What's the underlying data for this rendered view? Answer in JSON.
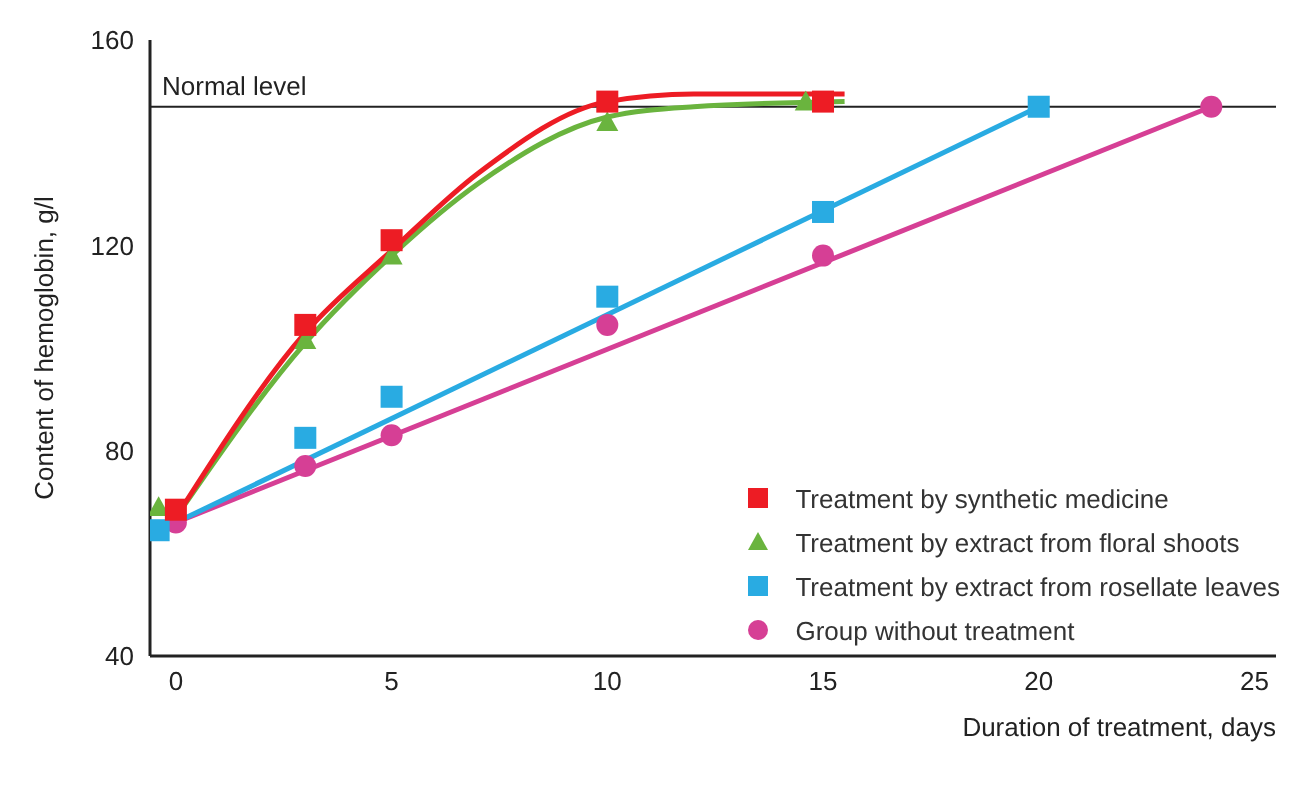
{
  "chart_data": {
    "type": "scatter",
    "xlabel": "Duration of treatment, days",
    "ylabel": "Content of hemoglobin, g/l",
    "xlim": [
      -0.6,
      25.5
    ],
    "xticks": [
      0,
      5,
      10,
      15,
      20,
      25
    ],
    "ylim": [
      40,
      160
    ],
    "yticks": [
      40,
      80,
      120,
      160
    ],
    "grid": false,
    "legend": "bottom right",
    "ref_lines": [
      {
        "axis": "y",
        "value": 147,
        "label": "Normal level",
        "color": "#222222"
      }
    ],
    "series": [
      {
        "name": "Treatment by synthetic medicine",
        "marker": "square",
        "color": "#ed1c24",
        "x": [
          0,
          3,
          5,
          10,
          15
        ],
        "values": [
          68.5,
          104.5,
          121,
          148,
          148
        ]
      },
      {
        "name": "Treatment by extract from floral shoots",
        "marker": "triangle",
        "color": "#6ab43e",
        "x": [
          -0.4,
          3,
          5,
          10,
          14.6
        ],
        "values": [
          69,
          101.5,
          118,
          144,
          148
        ]
      },
      {
        "name": "Treatment by extract from rosellate leaves",
        "marker": "square",
        "color": "#29abe2",
        "x": [
          -0.4,
          3,
          5,
          10,
          15,
          20
        ],
        "values": [
          64.5,
          82.5,
          90.5,
          110,
          126.5,
          147
        ]
      },
      {
        "name": "Group without treatment",
        "marker": "circle",
        "color": "#d63f95",
        "x": [
          0,
          3,
          5,
          10,
          15,
          24
        ],
        "values": [
          66,
          77,
          83,
          104.5,
          118,
          147
        ]
      },
      {
        "type": "line",
        "marker": "none",
        "color": "#ed1c24",
        "x": [
          0,
          3,
          5,
          7,
          10,
          12,
          15.5
        ],
        "values": [
          67,
          103,
          119,
          134,
          148,
          149.5,
          149.5
        ]
      },
      {
        "type": "line",
        "marker": "none",
        "color": "#6ab43e",
        "x": [
          0,
          3,
          5,
          7,
          10,
          12,
          15.5
        ],
        "values": [
          67,
          101,
          118,
          132,
          145,
          147,
          148
        ]
      },
      {
        "type": "line",
        "marker": "none",
        "color": "#29abe2",
        "x": [
          0,
          20
        ],
        "values": [
          66,
          147
        ]
      },
      {
        "type": "line",
        "marker": "none",
        "color": "#d63f95",
        "x": [
          0,
          24
        ],
        "values": [
          66,
          147
        ]
      }
    ]
  }
}
